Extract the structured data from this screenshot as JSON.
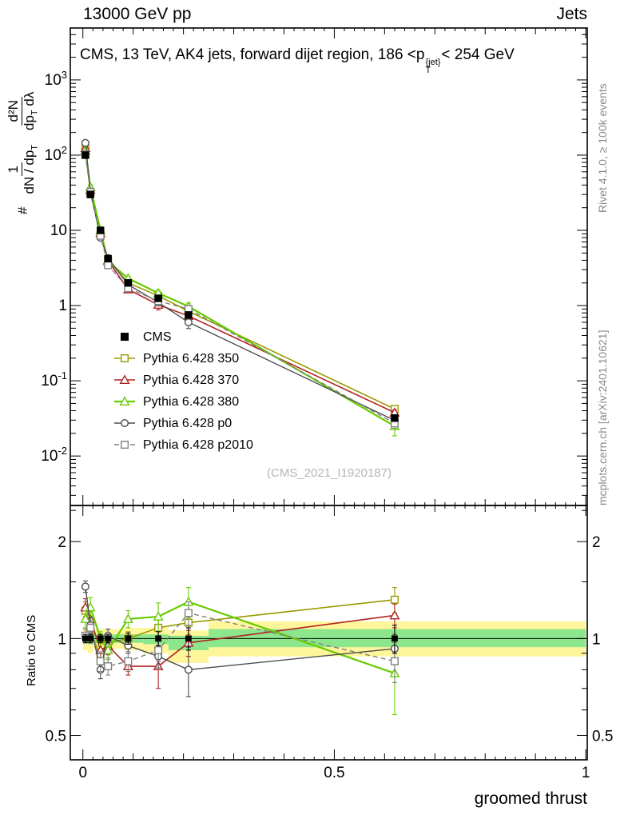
{
  "header": {
    "left": "13000 GeV pp",
    "right": "Jets"
  },
  "title": {
    "prefix": "CMS, 13 TeV, AK4 jets, forward dijet region, 186 <p",
    "p_sup": "{jet}",
    "p_sub": "T",
    "suffix": "< 254 GeV"
  },
  "y_axis_label": {
    "hash": "#",
    "frac1": {
      "num": "1",
      "den_a": "dN / dp",
      "den_sub": "T"
    },
    "frac2": {
      "num": "d²N",
      "den_a": "dp",
      "den_sub": "T",
      "den_b": " dλ"
    }
  },
  "ratio_axis_label": "Ratio to CMS",
  "x_axis_label": "groomed thrust",
  "watermark": "(CMS_2021_I1920187)",
  "side_notes": {
    "rivet": "Rivet 4.1.0, ≥ 100k events",
    "mcplots": "mcplots.cern.ch [arXiv:2401.10621]"
  },
  "chart_data": {
    "type": "line",
    "title": "CMS, 13 TeV, AK4 jets, forward dijet region, 186 < pT{jet} < 254 GeV",
    "xlabel": "groomed thrust",
    "ylabel_main": "1/(dN/dpT) d²N/(dpT dλ)",
    "ylabel_ratio": "Ratio to CMS",
    "legend_position": "inside-left-middle",
    "grid": false,
    "axes": {
      "x": {
        "min": -0.025,
        "max": 1.003,
        "majors": [
          0,
          0.5,
          1
        ],
        "major_labels": [
          "0",
          "0.5",
          "1"
        ],
        "minor_step": 0.1,
        "sub_step": 0.02
      },
      "y_main": {
        "scale": "log",
        "min": 0.0022,
        "max": 4900,
        "label_exponents": [
          -2,
          -1,
          0,
          1,
          2,
          3
        ]
      },
      "y_ratio": {
        "scale": "log",
        "min": 0.42,
        "max": 2.59,
        "majors": [
          0.5,
          1,
          2
        ],
        "major_labels": [
          "0.5",
          "1",
          "2"
        ],
        "minors": [
          0.6,
          0.7,
          0.8,
          0.9,
          1.5,
          2.5
        ]
      }
    },
    "x": [
      0.005,
      0.015,
      0.035,
      0.05,
      0.09,
      0.15,
      0.21,
      0.62
    ],
    "cms": {
      "label": "CMS",
      "color": "#000000",
      "marker": "square",
      "values": [
        100,
        30,
        10,
        4.2,
        2.0,
        1.25,
        0.75,
        0.032
      ],
      "ratio_err": [
        0.03,
        0.03,
        0.03,
        0.03,
        0.04,
        0.05,
        0.08,
        0.1
      ]
    },
    "series": [
      {
        "label": "Pythia 6.428 350",
        "color": "#999900",
        "marker": "square",
        "line": "solid",
        "lw": 1.6,
        "ratio": [
          1.22,
          1.05,
          0.88,
          0.97,
          1.0,
          1.08,
          1.12,
          1.32
        ],
        "ratio_err": [
          0.08,
          0.07,
          0.05,
          0.05,
          0.05,
          0.07,
          0.09,
          0.12
        ]
      },
      {
        "label": "Pythia 6.428 370",
        "color": "#B22222",
        "marker": "triangle",
        "line": "solid",
        "lw": 1.6,
        "ratio": [
          1.25,
          1.15,
          0.92,
          0.95,
          0.82,
          0.82,
          0.97,
          1.18
        ],
        "ratio_err": [
          0.08,
          0.08,
          0.05,
          0.06,
          0.05,
          0.12,
          0.09,
          0.1
        ]
      },
      {
        "label": "Pythia 6.428 380",
        "color": "#66CC00",
        "marker": "triangle",
        "line": "solid",
        "lw": 2.2,
        "ratio": [
          1.15,
          1.25,
          1.0,
          0.92,
          1.15,
          1.17,
          1.3,
          0.78
        ],
        "ratio_err": [
          0.07,
          0.09,
          0.05,
          0.06,
          0.07,
          0.12,
          0.14,
          0.2
        ]
      },
      {
        "label": "Pythia 6.428 p0",
        "color": "#4D4D4D",
        "marker": "circle",
        "line": "solid",
        "lw": 1.4,
        "ratio": [
          1.45,
          1.1,
          0.8,
          1.02,
          0.95,
          0.88,
          0.8,
          0.93
        ],
        "ratio_err": [
          0.06,
          0.06,
          0.05,
          0.05,
          0.05,
          0.07,
          0.14,
          0.1
        ]
      },
      {
        "label": "Pythia 6.428 p2010",
        "color": "#808080",
        "marker": "square",
        "line": "dashed",
        "lw": 1.4,
        "ratio": [
          1.02,
          1.08,
          0.85,
          0.82,
          0.85,
          0.92,
          1.2,
          0.85
        ],
        "ratio_err": [
          0.05,
          0.06,
          0.06,
          0.05,
          0.06,
          0.07,
          0.1,
          0.12
        ]
      }
    ],
    "bands": {
      "yellow": "#FFF59B",
      "green": "#8CE68C",
      "bins": [
        {
          "x0": 0.0,
          "x1": 0.01,
          "y_lo": 0.92,
          "y_hi": 1.08,
          "g_lo": 0.97,
          "g_hi": 1.03
        },
        {
          "x0": 0.01,
          "x1": 0.02,
          "y_lo": 0.9,
          "y_hi": 1.1,
          "g_lo": 0.96,
          "g_hi": 1.04
        },
        {
          "x0": 0.02,
          "x1": 0.05,
          "y_lo": 0.93,
          "y_hi": 1.07,
          "g_lo": 0.97,
          "g_hi": 1.03
        },
        {
          "x0": 0.05,
          "x1": 0.08,
          "y_lo": 0.93,
          "y_hi": 1.07,
          "g_lo": 0.97,
          "g_hi": 1.03
        },
        {
          "x0": 0.08,
          "x1": 0.12,
          "y_lo": 0.92,
          "y_hi": 1.08,
          "g_lo": 0.97,
          "g_hi": 1.03
        },
        {
          "x0": 0.12,
          "x1": 0.17,
          "y_lo": 0.9,
          "y_hi": 1.08,
          "g_lo": 0.96,
          "g_hi": 1.03
        },
        {
          "x0": 0.17,
          "x1": 0.25,
          "y_lo": 0.84,
          "y_hi": 1.06,
          "g_lo": 0.92,
          "g_hi": 1.02
        },
        {
          "x0": 0.25,
          "x1": 1.0,
          "y_lo": 0.88,
          "y_hi": 1.13,
          "g_lo": 0.94,
          "g_hi": 1.07
        }
      ]
    }
  }
}
